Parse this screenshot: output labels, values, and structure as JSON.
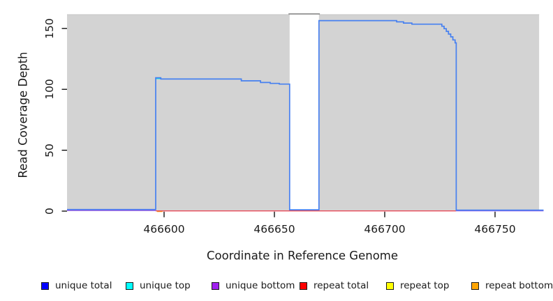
{
  "chart_data": {
    "type": "area",
    "title": "",
    "xlabel": "Coordinate in Reference Genome",
    "ylabel": "Read Coverage Depth",
    "xlim": [
      466556,
      466772
    ],
    "ylim": [
      0,
      161
    ],
    "x_ticks": [
      "466600",
      "466650",
      "466700",
      "466750"
    ],
    "x_tick_values": [
      466600,
      466650,
      466700,
      466750
    ],
    "y_ticks": [
      "0",
      "50",
      "100",
      "150"
    ],
    "y_tick_values": [
      0,
      50,
      100,
      150
    ],
    "grid": false,
    "legend_position": "bottom",
    "total_coverage_fill": {
      "color": "#d3d3d3",
      "note": "total-coverage area, off-scale and clipped at plot top",
      "blocks": [
        [
          466556,
          466656.9
        ],
        [
          466670.2,
          466770
        ]
      ],
      "clip_bridge_x": [
        466656.4,
        466670.6
      ],
      "clip_bridge_color": "#8f8f8f"
    },
    "series": [
      {
        "name": "repeat bottom",
        "color": "#ffa500",
        "segments": [
          [
            [
              466596.8,
              -0.35
            ],
            [
              466599.3,
              -0.35
            ]
          ]
        ]
      },
      {
        "name": "repeat total",
        "color": "#e84a58",
        "segments": [
          [
            [
              466596.2,
              0.2
            ],
            [
              466732.4,
              0.2
            ]
          ]
        ]
      },
      {
        "name": "repeat top",
        "color": "#ffff00",
        "segments": []
      },
      {
        "name": "unique bottom",
        "color": "#9556e8",
        "segments": [
          [
            [
              466556,
              0.5
            ],
            [
              466596.2,
              0.5
            ]
          ],
          [
            [
              466732.4,
              0.25
            ],
            [
              466772,
              0.25
            ]
          ]
        ]
      },
      {
        "name": "unique top",
        "color": "#00e0e8",
        "segments": [
          [
            [
              466596.2,
              108.8
            ],
            [
              466598.3,
              108.8
            ]
          ]
        ]
      },
      {
        "name": "unique total",
        "color": "#4680f0",
        "segments": [
          [
            [
              466556,
              1.3
            ],
            [
              466596.2,
              1.3
            ],
            [
              466596.2,
              109.5
            ],
            [
              466598.5,
              109.5
            ],
            [
              466598.5,
              108.5
            ],
            [
              466635,
              108.5
            ],
            [
              466635,
              107
            ],
            [
              466643.7,
              107
            ],
            [
              466643.7,
              105.6
            ],
            [
              466648.1,
              105.6
            ],
            [
              466648.1,
              104.9
            ],
            [
              466652.2,
              104.9
            ],
            [
              466652.2,
              104.3
            ],
            [
              466656.9,
              104.3
            ],
            [
              466656.9,
              1.1
            ],
            [
              466670.2,
              1.1
            ],
            [
              466670.2,
              156.4
            ],
            [
              466705.4,
              156.4
            ],
            [
              466705.4,
              155.4
            ],
            [
              466708.5,
              155.4
            ],
            [
              466708.5,
              154.4
            ],
            [
              466712.3,
              154.4
            ],
            [
              466712.3,
              153.5
            ],
            [
              466725.9,
              153.5
            ],
            [
              466725.9,
              151.8
            ],
            [
              466726.9,
              151.8
            ],
            [
              466726.9,
              149.8
            ],
            [
              466727.9,
              149.8
            ],
            [
              466727.9,
              147.6
            ],
            [
              466728.9,
              147.6
            ],
            [
              466728.9,
              145.4
            ],
            [
              466729.9,
              145.4
            ],
            [
              466729.9,
              143.1
            ],
            [
              466730.9,
              143.1
            ],
            [
              466730.9,
              140.6
            ],
            [
              466731.9,
              140.6
            ],
            [
              466731.9,
              138.2
            ],
            [
              466732.4,
              138.2
            ],
            [
              466732.4,
              0.8
            ],
            [
              466772,
              0.8
            ]
          ]
        ]
      }
    ]
  },
  "legend": {
    "items": [
      {
        "label": "unique total",
        "color": "#0000ff"
      },
      {
        "label": "unique top",
        "color": "#00ffff"
      },
      {
        "label": "unique bottom",
        "color": "#a020f0"
      },
      {
        "label": "repeat total",
        "color": "#ff0000"
      },
      {
        "label": "repeat top",
        "color": "#ffff00"
      },
      {
        "label": "repeat bottom",
        "color": "#ffa500"
      }
    ]
  }
}
